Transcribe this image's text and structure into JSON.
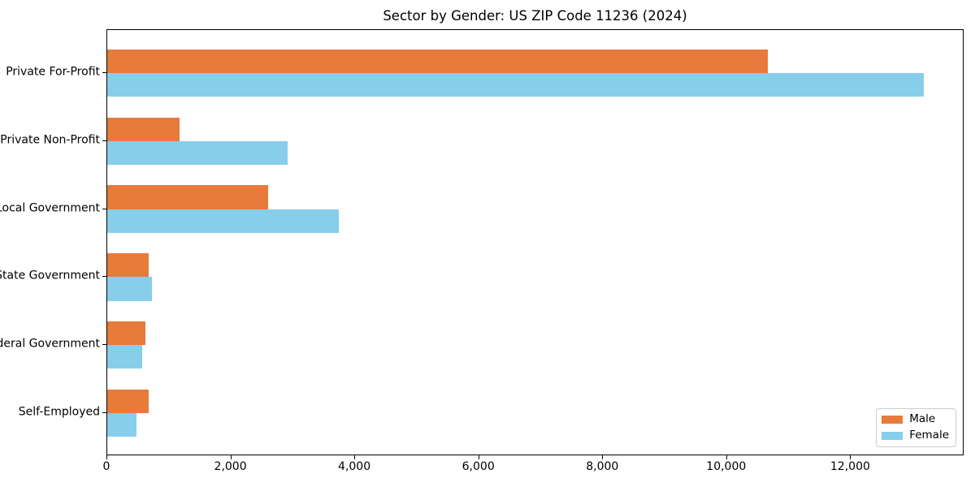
{
  "chart_data": {
    "type": "bar",
    "orientation": "horizontal",
    "title": "Sector by Gender: US ZIP Code 11236 (2024)",
    "categories": [
      "Private For-Profit",
      "Private Non-Profit",
      "Local Government",
      "State Government",
      "Federal Government",
      "Self-Employed"
    ],
    "series": [
      {
        "name": "Male",
        "color": "#E87A3C",
        "values": [
          10660,
          1170,
          2590,
          670,
          610,
          670
        ]
      },
      {
        "name": "Female",
        "color": "#87CEEB",
        "values": [
          13180,
          2910,
          3740,
          720,
          560,
          470
        ]
      }
    ],
    "xlabel": "",
    "ylabel": "",
    "xlim": [
      0,
      13830
    ],
    "xticks": [
      0,
      2000,
      4000,
      6000,
      8000,
      10000,
      12000
    ],
    "xtick_labels": [
      "0",
      "2,000",
      "4,000",
      "6,000",
      "8,000",
      "10,000",
      "12,000"
    ],
    "grid": false,
    "legend": {
      "position": "lower right",
      "entries": [
        "Male",
        "Female"
      ]
    },
    "colors": {
      "axis": "#000000",
      "legend_border": "#cccccc",
      "background": "#ffffff"
    }
  }
}
